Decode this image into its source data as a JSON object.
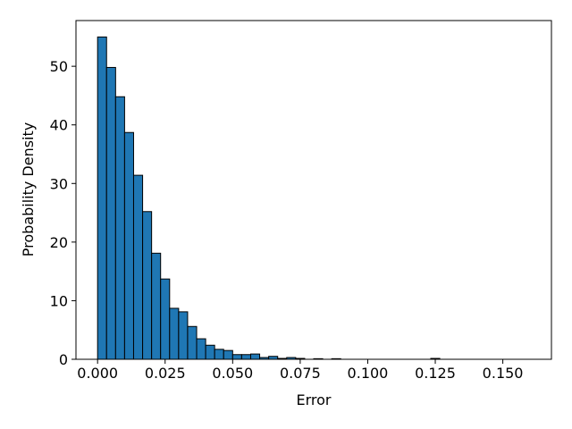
{
  "chart_data": {
    "type": "histogram",
    "xlabel": "Error",
    "ylabel": "Probability Density",
    "bins": [
      0,
      0.00333,
      0.00667,
      0.01,
      0.01333,
      0.01667,
      0.02,
      0.02333,
      0.02667,
      0.03,
      0.03333,
      0.03667,
      0.04,
      0.04333,
      0.04667,
      0.05,
      0.05333,
      0.05667,
      0.06,
      0.06333,
      0.06667,
      0.07,
      0.07333,
      0.07667,
      0.08,
      0.08333,
      0.08667,
      0.09,
      0.09333,
      0.09667,
      0.1,
      0.10333,
      0.10667,
      0.11,
      0.11333,
      0.11667,
      0.12,
      0.12333,
      0.12667,
      0.13,
      0.13333,
      0.13667,
      0.14,
      0.14333,
      0.14667,
      0.15,
      0.15333,
      0.15667,
      0.16
    ],
    "values": [
      55.0,
      49.8,
      44.8,
      38.7,
      31.4,
      25.2,
      18.1,
      13.7,
      8.7,
      8.1,
      5.6,
      3.5,
      2.4,
      1.7,
      1.5,
      0.8,
      0.8,
      0.9,
      0.3,
      0.5,
      0.15,
      0.3,
      0.15,
      0,
      0.1,
      0,
      0.1,
      0,
      0,
      0,
      0,
      0,
      0,
      0,
      0,
      0,
      0,
      0.15,
      0,
      0,
      0,
      0,
      0,
      0,
      0,
      0,
      0,
      0
    ],
    "color": "#1f77b4",
    "edgecolor": "#000000",
    "xlim": [
      -0.008,
      0.168
    ],
    "ylim": [
      0,
      57.8
    ],
    "xticks": [
      {
        "value": 0,
        "label": "0.000"
      },
      {
        "value": 0.025,
        "label": "0.025"
      },
      {
        "value": 0.05,
        "label": "0.050"
      },
      {
        "value": 0.075,
        "label": "0.075"
      },
      {
        "value": 0.1,
        "label": "0.100"
      },
      {
        "value": 0.125,
        "label": "0.125"
      },
      {
        "value": 0.15,
        "label": "0.150"
      }
    ],
    "yticks": [
      0,
      10,
      20,
      30,
      40,
      50
    ]
  }
}
